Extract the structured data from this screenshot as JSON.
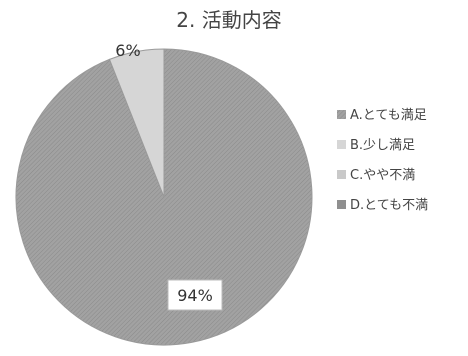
{
  "chart_data": {
    "type": "pie",
    "title": "2. 活動内容",
    "categories": [
      "A.とても満足",
      "B.少し満足",
      "C.やや不満",
      "D.とても不満"
    ],
    "values": [
      94,
      6,
      0,
      0
    ],
    "data_labels": [
      "94%",
      "6%",
      "",
      ""
    ],
    "colors": [
      "#9a9a9a",
      "#d6d6d6",
      "#c9c9c9",
      "#8f8f8f"
    ],
    "legend_position": "right"
  }
}
